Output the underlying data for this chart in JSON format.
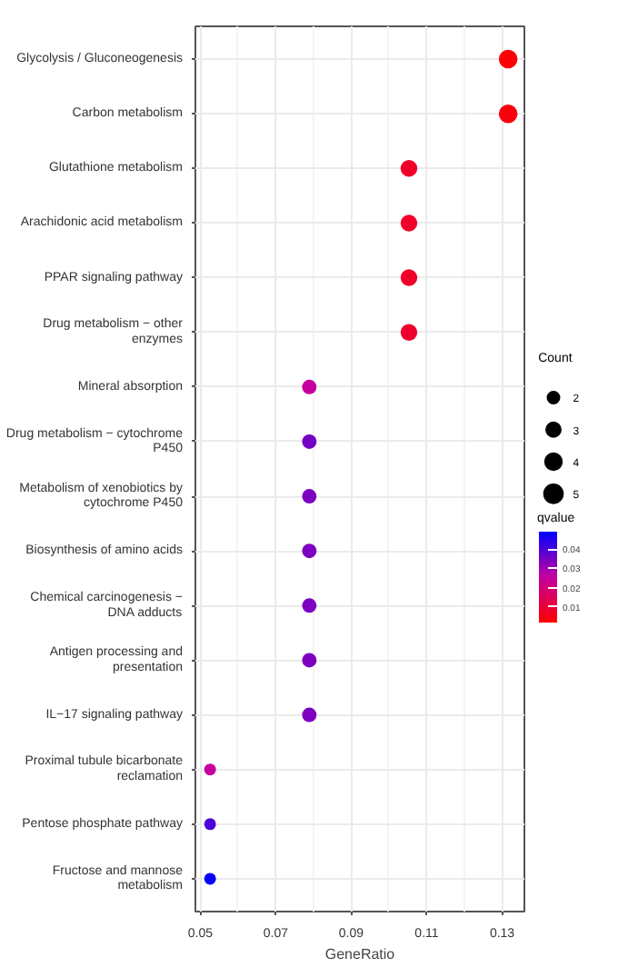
{
  "chart_data": {
    "type": "bubble",
    "orientation": "horizontal",
    "categories": [
      "Glycolysis / Gluconeogenesis",
      "Carbon metabolism",
      "Glutathione metabolism",
      "Arachidonic acid metabolism",
      "PPAR signaling pathway",
      "Drug metabolism − other\nenzymes",
      "Mineral absorption",
      "Drug metabolism − cytochrome\nP450",
      "Metabolism of xenobiotics by\ncytochrome P450",
      "Biosynthesis of amino acids",
      "Chemical carcinogenesis −\nDNA adducts",
      "Antigen processing and\npresentation",
      "IL−17 signaling pathway",
      "Proximal tubule bicarbonate\nreclamation",
      "Pentose phosphate pathway",
      "Fructose and mannose\nmetabolism"
    ],
    "values": [
      0.1316,
      0.1316,
      0.1053,
      0.1053,
      0.1053,
      0.1053,
      0.0789,
      0.0789,
      0.0789,
      0.0789,
      0.0789,
      0.0789,
      0.0789,
      0.0526,
      0.0526,
      0.0526
    ],
    "sizes": [
      5,
      5,
      4,
      4,
      4,
      4,
      3,
      3,
      3,
      3,
      3,
      3,
      3,
      2,
      2,
      2
    ],
    "size_legend": [
      2,
      3,
      4,
      5
    ],
    "cvalues": [
      0.003,
      0.004,
      0.008,
      0.008,
      0.008,
      0.009,
      0.025,
      0.035,
      0.034,
      0.034,
      0.034,
      0.034,
      0.034,
      0.025,
      0.04,
      0.048
    ],
    "clim": [
      0.002,
      0.049
    ],
    "cticks": [
      0.01,
      0.02,
      0.03,
      0.04
    ],
    "clabel": "qvalue",
    "legend_title": "Count",
    "xlabel": "GeneRatio",
    "xlim": [
      0.0487,
      0.1359
    ],
    "xticks": [
      0.05,
      0.07,
      0.09,
      0.11,
      0.13
    ],
    "grid": true
  }
}
